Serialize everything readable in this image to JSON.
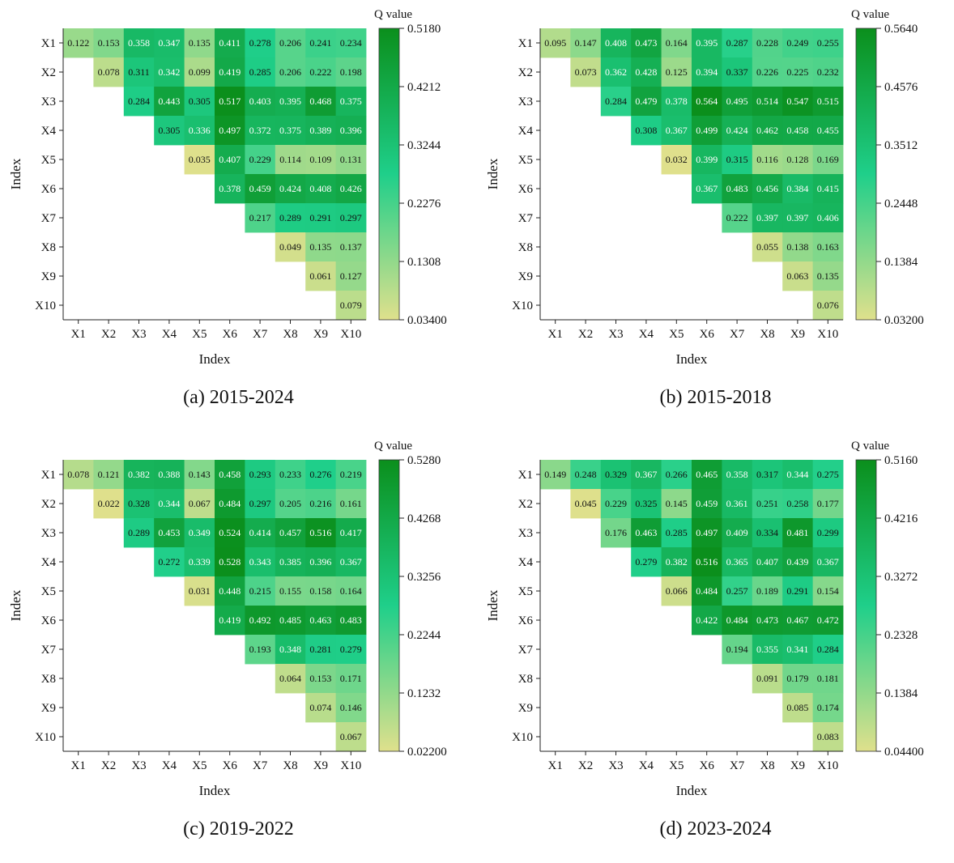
{
  "chart_data": [
    {
      "type": "heatmap",
      "caption": "(a) 2015-2024",
      "xlabel": "Index",
      "ylabel": "Index",
      "x_categories": [
        "X1",
        "X2",
        "X3",
        "X4",
        "X5",
        "X6",
        "X7",
        "X8",
        "X9",
        "X10"
      ],
      "y_categories": [
        "X1",
        "X2",
        "X3",
        "X4",
        "X5",
        "X6",
        "X7",
        "X8",
        "X9",
        "X10"
      ],
      "matrix": [
        [
          0.122,
          0.153,
          0.358,
          0.347,
          0.135,
          0.411,
          0.278,
          0.206,
          0.241,
          0.234
        ],
        [
          null,
          0.078,
          0.311,
          0.342,
          0.099,
          0.419,
          0.285,
          0.206,
          0.222,
          0.198
        ],
        [
          null,
          null,
          0.284,
          0.443,
          0.305,
          0.517,
          0.403,
          0.395,
          0.468,
          0.375
        ],
        [
          null,
          null,
          null,
          0.305,
          0.336,
          0.497,
          0.372,
          0.375,
          0.389,
          0.396
        ],
        [
          null,
          null,
          null,
          null,
          0.035,
          0.407,
          0.229,
          0.114,
          0.109,
          0.131
        ],
        [
          null,
          null,
          null,
          null,
          null,
          0.378,
          0.459,
          0.424,
          0.408,
          0.426
        ],
        [
          null,
          null,
          null,
          null,
          null,
          null,
          0.217,
          0.289,
          0.291,
          0.297
        ],
        [
          null,
          null,
          null,
          null,
          null,
          null,
          null,
          0.049,
          0.135,
          0.137
        ],
        [
          null,
          null,
          null,
          null,
          null,
          null,
          null,
          null,
          0.061,
          0.127
        ],
        [
          null,
          null,
          null,
          null,
          null,
          null,
          null,
          null,
          null,
          0.079
        ]
      ],
      "colorbar": {
        "title": "Q value",
        "ticks": [
          "0.5180",
          "0.4212",
          "0.3244",
          "0.2276",
          "0.1308",
          "0.03400"
        ],
        "range": [
          0.034,
          0.518
        ]
      }
    },
    {
      "type": "heatmap",
      "caption": "(b) 2015-2018",
      "xlabel": "Index",
      "ylabel": "Index",
      "x_categories": [
        "X1",
        "X2",
        "X3",
        "X4",
        "X5",
        "X6",
        "X7",
        "X8",
        "X9",
        "X10"
      ],
      "y_categories": [
        "X1",
        "X2",
        "X3",
        "X4",
        "X5",
        "X6",
        "X7",
        "X8",
        "X9",
        "X10"
      ],
      "matrix": [
        [
          0.095,
          0.147,
          0.408,
          0.473,
          0.164,
          0.395,
          0.287,
          0.228,
          0.249,
          0.255
        ],
        [
          null,
          0.073,
          0.362,
          0.428,
          0.125,
          0.394,
          0.337,
          0.226,
          0.225,
          0.232
        ],
        [
          null,
          null,
          0.284,
          0.479,
          0.378,
          0.564,
          0.495,
          0.514,
          0.547,
          0.515
        ],
        [
          null,
          null,
          null,
          0.308,
          0.367,
          0.499,
          0.424,
          0.462,
          0.458,
          0.455
        ],
        [
          null,
          null,
          null,
          null,
          0.032,
          0.399,
          0.315,
          0.116,
          0.128,
          0.169
        ],
        [
          null,
          null,
          null,
          null,
          null,
          0.367,
          0.483,
          0.456,
          0.384,
          0.415
        ],
        [
          null,
          null,
          null,
          null,
          null,
          null,
          0.222,
          0.397,
          0.397,
          0.406
        ],
        [
          null,
          null,
          null,
          null,
          null,
          null,
          null,
          0.055,
          0.138,
          0.163
        ],
        [
          null,
          null,
          null,
          null,
          null,
          null,
          null,
          null,
          0.063,
          0.135
        ],
        [
          null,
          null,
          null,
          null,
          null,
          null,
          null,
          null,
          null,
          0.076
        ]
      ],
      "colorbar": {
        "title": "Q value",
        "ticks": [
          "0.5640",
          "0.4576",
          "0.3512",
          "0.2448",
          "0.1384",
          "0.03200"
        ],
        "range": [
          0.032,
          0.564
        ]
      }
    },
    {
      "type": "heatmap",
      "caption": "(c) 2019-2022",
      "xlabel": "Index",
      "ylabel": "Index",
      "x_categories": [
        "X1",
        "X2",
        "X3",
        "X4",
        "X5",
        "X6",
        "X7",
        "X8",
        "X9",
        "X10"
      ],
      "y_categories": [
        "X1",
        "X2",
        "X3",
        "X4",
        "X5",
        "X6",
        "X7",
        "X8",
        "X9",
        "X10"
      ],
      "matrix": [
        [
          0.078,
          0.121,
          0.382,
          0.388,
          0.143,
          0.458,
          0.293,
          0.233,
          0.276,
          0.219
        ],
        [
          null,
          0.022,
          0.328,
          0.344,
          0.067,
          0.484,
          0.297,
          0.205,
          0.216,
          0.161
        ],
        [
          null,
          null,
          0.289,
          0.453,
          0.349,
          0.524,
          0.414,
          0.457,
          0.516,
          0.417
        ],
        [
          null,
          null,
          null,
          0.272,
          0.339,
          0.528,
          0.343,
          0.385,
          0.396,
          0.367
        ],
        [
          null,
          null,
          null,
          null,
          0.031,
          0.448,
          0.215,
          0.155,
          0.158,
          0.164
        ],
        [
          null,
          null,
          null,
          null,
          null,
          0.419,
          0.492,
          0.485,
          0.463,
          0.483
        ],
        [
          null,
          null,
          null,
          null,
          null,
          null,
          0.193,
          0.348,
          0.281,
          0.279
        ],
        [
          null,
          null,
          null,
          null,
          null,
          null,
          null,
          0.064,
          0.153,
          0.171
        ],
        [
          null,
          null,
          null,
          null,
          null,
          null,
          null,
          null,
          0.074,
          0.146
        ],
        [
          null,
          null,
          null,
          null,
          null,
          null,
          null,
          null,
          null,
          0.067
        ]
      ],
      "colorbar": {
        "title": "Q value",
        "ticks": [
          "0.5280",
          "0.4268",
          "0.3256",
          "0.2244",
          "0.1232",
          "0.02200"
        ],
        "range": [
          0.022,
          0.528
        ]
      }
    },
    {
      "type": "heatmap",
      "caption": "(d) 2023-2024",
      "xlabel": "Index",
      "ylabel": "Index",
      "x_categories": [
        "X1",
        "X2",
        "X3",
        "X4",
        "X5",
        "X6",
        "X7",
        "X8",
        "X9",
        "X10"
      ],
      "y_categories": [
        "X1",
        "X2",
        "X3",
        "X4",
        "X5",
        "X6",
        "X7",
        "X8",
        "X9",
        "X10"
      ],
      "matrix": [
        [
          0.149,
          0.248,
          0.329,
          0.367,
          0.266,
          0.465,
          0.358,
          0.317,
          0.344,
          0.275
        ],
        [
          null,
          0.045,
          0.229,
          0.325,
          0.145,
          0.459,
          0.361,
          0.251,
          0.258,
          0.177
        ],
        [
          null,
          null,
          0.176,
          0.463,
          0.285,
          0.497,
          0.409,
          0.334,
          0.481,
          0.299
        ],
        [
          null,
          null,
          null,
          0.279,
          0.382,
          0.516,
          0.365,
          0.407,
          0.439,
          0.367
        ],
        [
          null,
          null,
          null,
          null,
          0.066,
          0.484,
          0.257,
          0.189,
          0.291,
          0.154
        ],
        [
          null,
          null,
          null,
          null,
          null,
          0.422,
          0.484,
          0.473,
          0.467,
          0.472
        ],
        [
          null,
          null,
          null,
          null,
          null,
          null,
          0.194,
          0.355,
          0.341,
          0.284
        ],
        [
          null,
          null,
          null,
          null,
          null,
          null,
          null,
          0.091,
          0.179,
          0.181
        ],
        [
          null,
          null,
          null,
          null,
          null,
          null,
          null,
          null,
          0.085,
          0.174
        ],
        [
          null,
          null,
          null,
          null,
          null,
          null,
          null,
          null,
          null,
          0.083
        ]
      ],
      "colorbar": {
        "title": "Q value",
        "ticks": [
          "0.5160",
          "0.4216",
          "0.3272",
          "0.2328",
          "0.1384",
          "0.04400"
        ],
        "range": [
          0.044,
          0.516
        ]
      }
    }
  ],
  "colors": {
    "low": "#dfe08c",
    "mid": "#1fcf8a",
    "high": "#0b8f1c",
    "text_dark": "#111111",
    "text_light": "#ffffff"
  }
}
